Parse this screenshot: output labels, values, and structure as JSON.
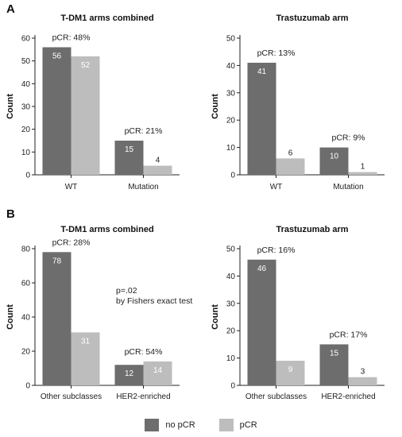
{
  "panel_labels": [
    "A",
    "B"
  ],
  "legend": [
    {
      "label": "no pCR",
      "color": "#6d6d6d"
    },
    {
      "label": "pCR",
      "color": "#bdbdbd"
    }
  ],
  "colors": {
    "no_pcr": "#6d6d6d",
    "pcr": "#bdbdbd",
    "axis": "#222222"
  },
  "chart_data": [
    {
      "type": "bar",
      "title": "T-DM1 arms combined",
      "ylabel": "Count",
      "ylim": [
        0,
        60
      ],
      "yticks": [
        0,
        10,
        20,
        30,
        40,
        50,
        60
      ],
      "categories": [
        "WT",
        "Mutation"
      ],
      "series": [
        {
          "name": "no pCR",
          "values": [
            56,
            15
          ]
        },
        {
          "name": "pCR",
          "values": [
            52,
            4
          ]
        }
      ],
      "annotations": [
        {
          "category": "WT",
          "text": "pCR: 48%"
        },
        {
          "category": "Mutation",
          "text": "pCR: 21%"
        }
      ]
    },
    {
      "type": "bar",
      "title": "Trastuzumab arm",
      "ylabel": "Count",
      "ylim": [
        0,
        50
      ],
      "yticks": [
        0,
        10,
        20,
        30,
        40,
        50
      ],
      "categories": [
        "WT",
        "Mutation"
      ],
      "series": [
        {
          "name": "no pCR",
          "values": [
            41,
            10
          ]
        },
        {
          "name": "pCR",
          "values": [
            6,
            1
          ]
        }
      ],
      "annotations": [
        {
          "category": "WT",
          "text": "pCR: 13%"
        },
        {
          "category": "Mutation",
          "text": "pCR: 9%"
        }
      ]
    },
    {
      "type": "bar",
      "title": "T-DM1 arms combined",
      "ylabel": "Count",
      "ylim": [
        0,
        80
      ],
      "yticks": [
        0,
        20,
        40,
        60,
        80
      ],
      "categories": [
        "Other subclasses",
        "HER2-enriched"
      ],
      "series": [
        {
          "name": "no pCR",
          "values": [
            78,
            12
          ]
        },
        {
          "name": "pCR",
          "values": [
            31,
            14
          ]
        }
      ],
      "annotations": [
        {
          "category": "Other subclasses",
          "text": "pCR: 28%"
        },
        {
          "category": "HER2-enriched",
          "text": "pCR: 54%"
        }
      ],
      "note": [
        "p=.02",
        "by Fishers exact test"
      ]
    },
    {
      "type": "bar",
      "title": "Trastuzumab arm",
      "ylabel": "Count",
      "ylim": [
        0,
        50
      ],
      "yticks": [
        0,
        10,
        20,
        30,
        40,
        50
      ],
      "categories": [
        "Other subclasses",
        "HER2-enriched"
      ],
      "series": [
        {
          "name": "no pCR",
          "values": [
            46,
            15
          ]
        },
        {
          "name": "pCR",
          "values": [
            9,
            3
          ]
        }
      ],
      "annotations": [
        {
          "category": "Other subclasses",
          "text": "pCR: 16%"
        },
        {
          "category": "HER2-enriched",
          "text": "pCR: 17%"
        }
      ]
    }
  ]
}
